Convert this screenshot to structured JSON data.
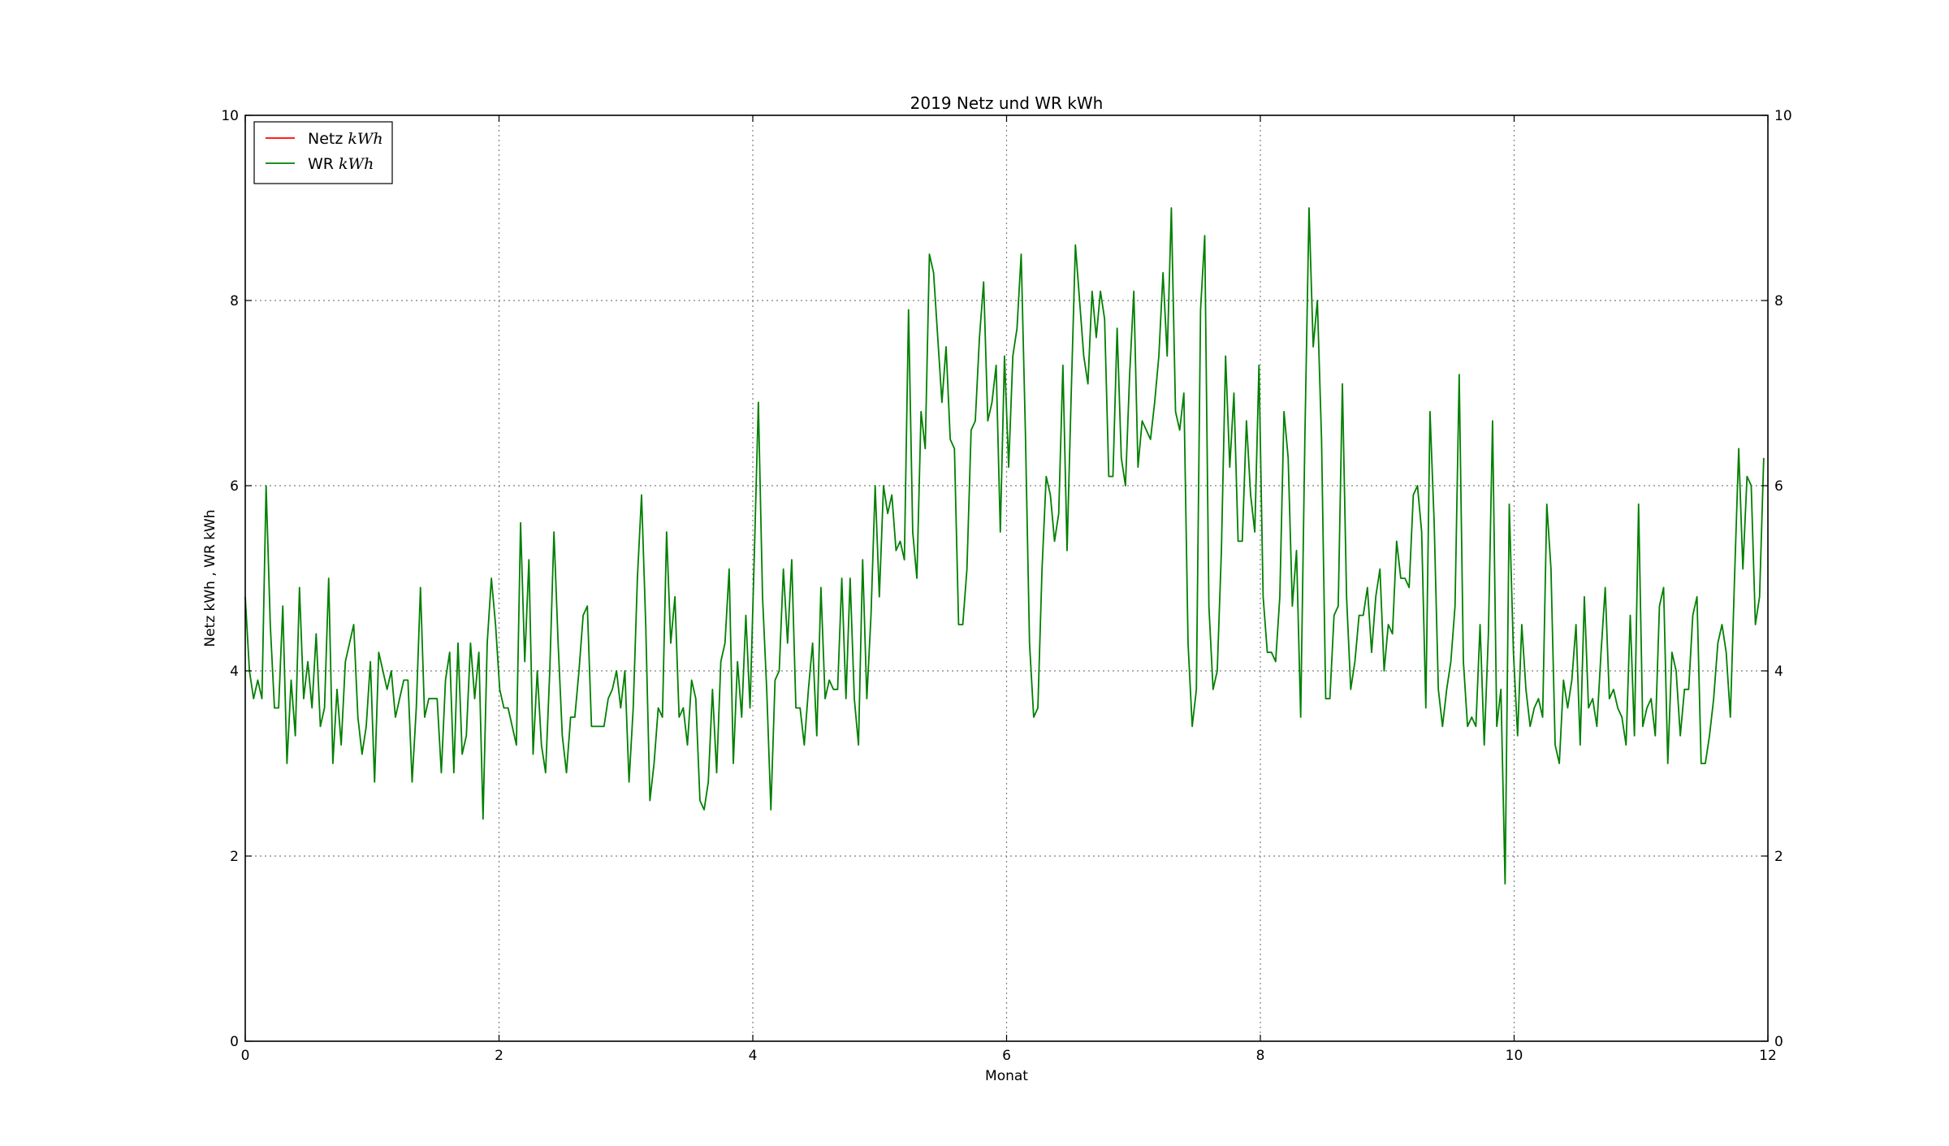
{
  "chart_data": {
    "type": "line",
    "title": "2019 Netz und WR kWh",
    "xlabel": "Monat",
    "ylabel": "Netz kWh , WR kWh",
    "xlim": [
      0,
      12
    ],
    "ylim": [
      0,
      10
    ],
    "xticks": [
      0,
      2,
      4,
      6,
      8,
      10,
      12
    ],
    "yticks": [
      0,
      2,
      4,
      6,
      8,
      10
    ],
    "right_axis": true,
    "grid": true,
    "legend_position": "top-left",
    "series": [
      {
        "name": "Netz",
        "name_math": "kWh",
        "color": "#ff0000",
        "x": [],
        "y": []
      },
      {
        "name": "WR",
        "name_math": "kWh",
        "color": "#008000",
        "x_start": 0,
        "x_step": 0.0328767,
        "y": [
          4.8,
          4.0,
          3.7,
          3.9,
          3.7,
          6.0,
          4.5,
          3.6,
          3.6,
          4.7,
          3.0,
          3.9,
          3.3,
          4.9,
          3.7,
          4.1,
          3.6,
          4.4,
          3.4,
          3.6,
          5.0,
          3.0,
          3.8,
          3.2,
          4.1,
          4.3,
          4.5,
          3.5,
          3.1,
          3.4,
          4.1,
          2.8,
          4.2,
          4.0,
          3.8,
          4.0,
          3.5,
          3.7,
          3.9,
          3.9,
          2.8,
          3.6,
          4.9,
          3.5,
          3.7,
          3.7,
          3.7,
          2.9,
          3.9,
          4.2,
          2.9,
          4.3,
          3.1,
          3.3,
          4.3,
          3.7,
          4.2,
          2.4,
          4.3,
          5.0,
          4.5,
          3.8,
          3.6,
          3.6,
          3.4,
          3.2,
          5.6,
          4.1,
          5.2,
          3.1,
          4.0,
          3.2,
          2.9,
          4.0,
          5.5,
          4.3,
          3.3,
          2.9,
          3.5,
          3.5,
          4.0,
          4.6,
          4.7,
          3.4,
          3.4,
          3.4,
          3.4,
          3.7,
          3.8,
          4.0,
          3.6,
          4.0,
          2.8,
          3.6,
          5.0,
          5.9,
          4.5,
          2.6,
          3.0,
          3.6,
          3.5,
          5.5,
          4.3,
          4.8,
          3.5,
          3.6,
          3.2,
          3.9,
          3.7,
          2.6,
          2.5,
          2.8,
          3.8,
          2.9,
          4.1,
          4.3,
          5.1,
          3.0,
          4.1,
          3.5,
          4.6,
          3.6,
          5.2,
          6.9,
          4.8,
          3.8,
          2.5,
          3.9,
          4.0,
          5.1,
          4.3,
          5.2,
          3.6,
          3.6,
          3.2,
          3.8,
          4.3,
          3.3,
          4.9,
          3.7,
          3.9,
          3.8,
          3.8,
          5.0,
          3.7,
          5.0,
          3.7,
          3.2,
          5.2,
          3.7,
          4.6,
          6.0,
          4.8,
          6.0,
          5.7,
          5.9,
          5.3,
          5.4,
          5.2,
          7.9,
          5.5,
          5.0,
          6.8,
          6.4,
          8.5,
          8.3,
          7.6,
          6.9,
          7.5,
          6.5,
          6.4,
          4.5,
          4.5,
          5.1,
          6.6,
          6.7,
          7.6,
          8.2,
          6.7,
          6.9,
          7.3,
          5.5,
          7.4,
          6.2,
          7.4,
          7.7,
          8.5,
          6.6,
          4.3,
          3.5,
          3.6,
          5.1,
          6.1,
          5.9,
          5.4,
          5.7,
          7.3,
          5.3,
          7.0,
          8.6,
          8.0,
          7.4,
          7.1,
          8.1,
          7.6,
          8.1,
          7.8,
          6.1,
          6.1,
          7.7,
          6.3,
          6.0,
          7.2,
          8.1,
          6.2,
          6.7,
          6.6,
          6.5,
          6.9,
          7.4,
          8.3,
          7.4,
          9.0,
          6.8,
          6.6,
          7.0,
          4.3,
          3.4,
          3.8,
          7.9,
          8.7,
          4.7,
          3.8,
          4.0,
          5.3,
          7.4,
          6.2,
          7.0,
          5.4,
          5.4,
          6.7,
          5.9,
          5.5,
          7.3,
          4.8,
          4.2,
          4.2,
          4.1,
          4.8,
          6.8,
          6.3,
          4.7,
          5.3,
          3.5,
          6.5,
          9.0,
          7.5,
          8.0,
          6.5,
          3.7,
          3.7,
          4.6,
          4.7,
          7.1,
          4.8,
          3.8,
          4.1,
          4.6,
          4.6,
          4.9,
          4.2,
          4.8,
          5.1,
          4.0,
          4.5,
          4.4,
          5.4,
          5.0,
          5.0,
          4.9,
          5.9,
          6.0,
          5.5,
          3.6,
          6.8,
          5.6,
          3.8,
          3.4,
          3.8,
          4.1,
          4.7,
          7.2,
          4.1,
          3.4,
          3.5,
          3.4,
          4.5,
          3.2,
          4.4,
          6.7,
          3.4,
          3.8,
          1.7,
          5.8,
          4.2,
          3.3,
          4.5,
          3.8,
          3.4,
          3.6,
          3.7,
          3.5,
          5.8,
          5.1,
          3.2,
          3.0,
          3.9,
          3.6,
          3.9,
          4.5,
          3.2,
          4.8,
          3.6,
          3.7,
          3.4,
          4.2,
          4.9,
          3.7,
          3.8,
          3.6,
          3.5,
          3.2,
          4.6,
          3.3,
          5.8,
          3.4,
          3.6,
          3.7,
          3.3,
          4.7,
          4.9,
          3.0,
          4.2,
          4.0,
          3.3,
          3.8,
          3.8,
          4.6,
          4.8,
          3.0,
          3.0,
          3.3,
          3.7,
          4.3,
          4.5,
          4.2,
          3.5,
          5.0,
          6.4,
          5.1,
          6.1,
          6.0,
          4.5,
          4.8,
          6.3
        ]
      }
    ]
  }
}
